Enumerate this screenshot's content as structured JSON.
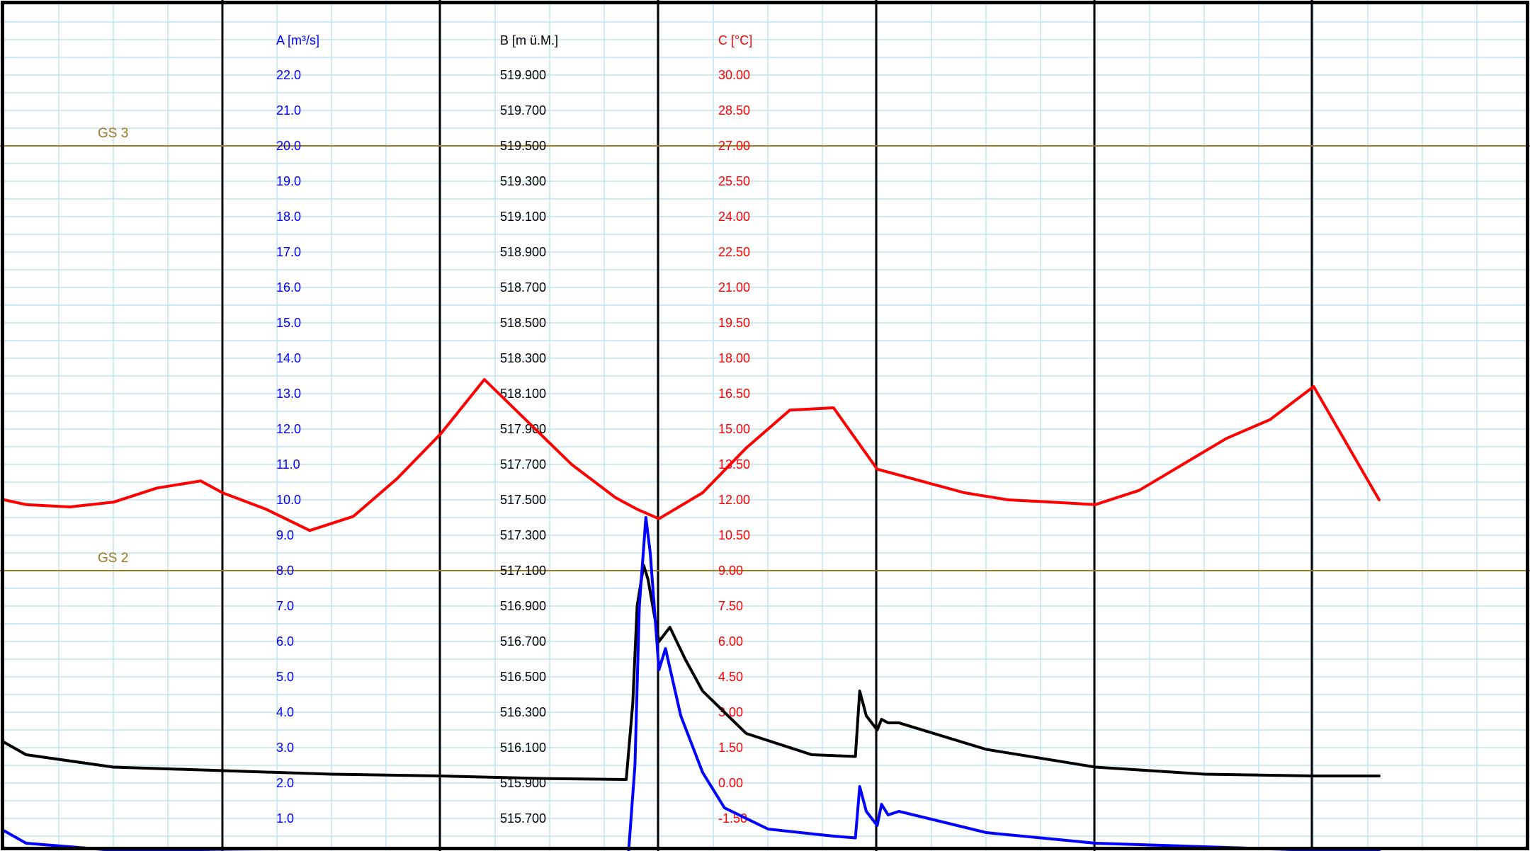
{
  "chart_data": {
    "type": "line",
    "grid": true,
    "colors": {
      "A": "#0000ff",
      "B": "#000000",
      "C": "#ff0000",
      "reference": "#a07820",
      "grid_minor": "#bfe3f2",
      "grid_major": "#000000"
    },
    "axes": [
      {
        "id": "A",
        "title": "A [m³/s]",
        "ticks": [
          "22.0",
          "21.0",
          "20.0",
          "19.0",
          "18.0",
          "17.0",
          "16.0",
          "15.0",
          "14.0",
          "13.0",
          "12.0",
          "11.0",
          "10.0",
          "9.0",
          "8.0",
          "7.0",
          "6.0",
          "5.0",
          "4.0",
          "3.0",
          "2.0",
          "1.0"
        ],
        "ylim": [
          0,
          23
        ]
      },
      {
        "id": "B",
        "title": "B [m ü.M.]",
        "ticks": [
          "519.900",
          "519.700",
          "519.500",
          "519.300",
          "519.100",
          "518.900",
          "518.700",
          "518.500",
          "518.300",
          "518.100",
          "517.900",
          "517.700",
          "517.500",
          "517.300",
          "517.100",
          "516.900",
          "516.700",
          "516.500",
          "516.300",
          "516.100",
          "515.900",
          "515.700"
        ],
        "ylim": [
          515.5,
          520.1
        ]
      },
      {
        "id": "C",
        "title": "C [°C]",
        "ticks": [
          "30.00",
          "28.50",
          "27.00",
          "25.50",
          "24.00",
          "22.50",
          "21.00",
          "19.50",
          "18.00",
          "16.50",
          "15.00",
          "13.50",
          "12.00",
          "10.50",
          "9.00",
          "7.50",
          "6.00",
          "4.50",
          "3.00",
          "1.50",
          "0.00",
          "-1.50"
        ],
        "ylim": [
          -3,
          31.5
        ]
      }
    ],
    "reference_lines": [
      {
        "label": "GS 3",
        "axis": "A",
        "value": 20.0
      },
      {
        "label": "GS 2",
        "axis": "A",
        "value": 8.0
      }
    ],
    "x": [
      0,
      0.1,
      0.3,
      0.5,
      0.7,
      0.9,
      1.0,
      1.2,
      1.4,
      1.6,
      1.8,
      2.0,
      2.2,
      2.4,
      2.6,
      2.8,
      2.9,
      3.0,
      3.2,
      3.4,
      3.6,
      3.8,
      4.0,
      4.2,
      4.4,
      4.6,
      4.8,
      5.0,
      5.2,
      5.4,
      5.6,
      5.8,
      6.0,
      6.2,
      6.3
    ],
    "series": [
      {
        "axis": "C",
        "values": [
          12.0,
          11.8,
          11.7,
          11.9,
          12.5,
          12.8,
          12.3,
          11.6,
          10.7,
          11.3,
          12.9,
          14.8,
          17.1,
          15.3,
          13.5,
          12.1,
          11.6,
          11.2,
          12.3,
          14.2,
          15.8,
          15.9,
          13.3,
          12.8,
          12.3,
          12.0,
          11.9,
          11.8,
          12.4,
          13.5,
          14.6,
          15.4,
          16.8,
          13.6,
          12.0
        ]
      }
    ],
    "highlight_series": [
      {
        "axis": "B",
        "x": [
          0.0,
          0.1,
          0.5,
          1.0,
          1.5,
          2.0,
          2.5,
          2.85,
          2.88,
          2.9,
          2.93,
          2.95,
          3.0,
          3.05,
          3.12,
          3.2,
          3.4,
          3.7,
          3.9,
          3.92,
          3.95,
          4.0,
          4.02,
          4.05,
          4.1,
          4.5,
          5.0,
          5.5,
          6.0,
          6.3
        ],
        "values": [
          516.13,
          516.06,
          515.99,
          515.97,
          515.95,
          515.94,
          515.925,
          515.92,
          516.35,
          516.9,
          517.13,
          517.05,
          516.7,
          516.78,
          516.6,
          516.42,
          516.18,
          516.06,
          516.05,
          516.42,
          516.28,
          516.2,
          516.26,
          516.24,
          516.24,
          516.09,
          515.99,
          515.95,
          515.94,
          515.94
        ]
      },
      {
        "axis": "A",
        "x": [
          0.0,
          0.1,
          0.5,
          1.0,
          1.5,
          2.0,
          2.5,
          2.86,
          2.89,
          2.91,
          2.94,
          2.96,
          3.0,
          3.03,
          3.1,
          3.2,
          3.3,
          3.5,
          3.8,
          3.9,
          3.92,
          3.95,
          4.0,
          4.02,
          4.05,
          4.1,
          4.5,
          5.0,
          5.5,
          6.0,
          6.3
        ],
        "values": [
          0.65,
          0.3,
          0.1,
          0.05,
          0.03,
          0.02,
          0.01,
          0.0,
          2.5,
          7.0,
          9.5,
          8.5,
          5.2,
          5.8,
          3.9,
          2.3,
          1.3,
          0.7,
          0.5,
          0.45,
          1.9,
          1.2,
          0.8,
          1.4,
          1.1,
          1.2,
          0.6,
          0.3,
          0.2,
          0.1,
          0.1
        ]
      }
    ]
  }
}
